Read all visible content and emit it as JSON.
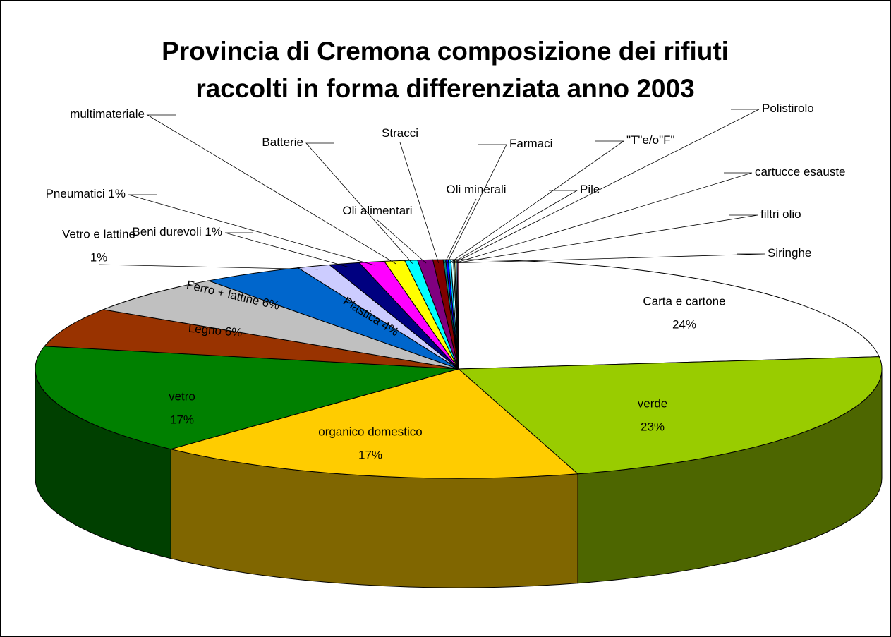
{
  "chart_data": {
    "type": "pie3d",
    "title": [
      "Provincia di Cremona composizione dei rifiuti",
      "raccolti in forma differenziata anno 2003"
    ],
    "categories": [
      "Carta e cartone",
      "verde",
      "organico domestico",
      "vetro",
      "Legno",
      "Ferro + lattine",
      "Plastica",
      "Vetro e lattine",
      "Beni durevoli",
      "Pneumatici",
      "multimateriale",
      "Batterie",
      "Oli alimentari",
      "Stracci",
      "Oli minerali",
      "Farmaci",
      "\"T\"e/o\"F\"",
      "Pile",
      "Polistirolo",
      "cartucce esauste",
      "filtri olio",
      "Siringhe"
    ],
    "values": [
      24,
      23,
      17,
      17,
      6,
      6,
      4,
      1.3,
      1.2,
      1.0,
      0.8,
      0.5,
      0.6,
      0.4,
      0.1,
      0.1,
      0.1,
      0.1,
      0.05,
      0.05,
      0.05,
      0.05
    ],
    "value_labels": [
      "24%",
      "23%",
      "17%",
      "17%",
      "6%",
      "6%",
      "4%",
      "1%",
      "1%",
      "1%",
      null,
      null,
      null,
      null,
      null,
      null,
      null,
      null,
      null,
      null,
      null,
      null
    ],
    "colors": [
      "#ffffff",
      "#99cc00",
      "#ffcc00",
      "#008000",
      "#993300",
      "#c0c0c0",
      "#0066cc",
      "#ccccff",
      "#000080",
      "#ff00ff",
      "#ffff00",
      "#00ffff",
      "#800080",
      "#800000",
      "#008080",
      "#0000ff",
      "#00ccff",
      "#ccffff",
      "#ccffcc",
      "#ffff99",
      "#99ccff",
      "#ff99cc"
    ]
  }
}
